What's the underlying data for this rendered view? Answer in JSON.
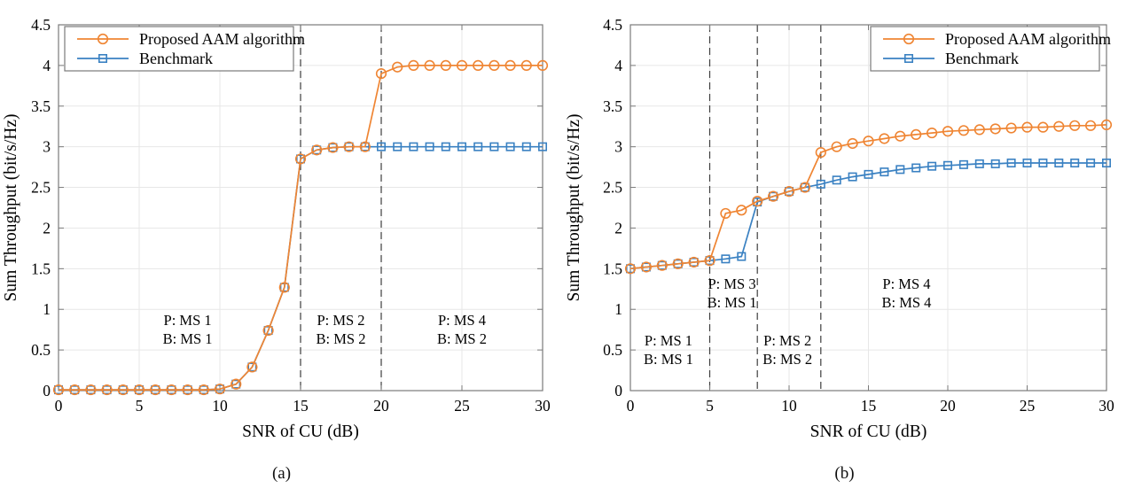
{
  "colors": {
    "proposed": "#EF8533",
    "benchmark": "#3A81C2",
    "dashed_line": "#3d3d3d",
    "grid": "#e7e7e7",
    "axis_box": "#7a7a7a",
    "text": "#000000",
    "background": "#ffffff"
  },
  "chart_data": [
    {
      "type": "line",
      "caption": "(a)",
      "xlabel": "SNR of CU (dB)",
      "ylabel": "Sum Throughput (bit/s/Hz)",
      "xlim": [
        0,
        30
      ],
      "ylim": [
        0,
        4.5
      ],
      "xticks": [
        0,
        5,
        10,
        15,
        20,
        25,
        30
      ],
      "yticks": [
        0,
        0.5,
        1,
        1.5,
        2,
        2.5,
        3,
        3.5,
        4,
        4.5
      ],
      "grid": true,
      "legend_position": "top-left",
      "dashed_vlines": [
        15,
        20
      ],
      "annotations": [
        {
          "x": 8,
          "y": 0.75,
          "lines": [
            "P: MS 1",
            "B: MS 1"
          ]
        },
        {
          "x": 17.5,
          "y": 0.75,
          "lines": [
            "P: MS 2",
            "B: MS 2"
          ]
        },
        {
          "x": 25,
          "y": 0.75,
          "lines": [
            "P: MS 4",
            "B: MS 2"
          ]
        }
      ],
      "x": [
        0,
        1,
        2,
        3,
        4,
        5,
        6,
        7,
        8,
        9,
        10,
        11,
        12,
        13,
        14,
        15,
        16,
        17,
        18,
        19,
        20,
        21,
        22,
        23,
        24,
        25,
        26,
        27,
        28,
        29,
        30
      ],
      "series": [
        {
          "name": "Proposed AAM algorithm",
          "marker": "circle",
          "color": "#EF8533",
          "values": [
            0.01,
            0.01,
            0.01,
            0.01,
            0.01,
            0.01,
            0.01,
            0.01,
            0.01,
            0.01,
            0.02,
            0.08,
            0.29,
            0.74,
            1.27,
            2.85,
            2.96,
            2.99,
            3.0,
            3.0,
            3.9,
            3.98,
            4.0,
            4.0,
            4.0,
            4.0,
            4.0,
            4.0,
            4.0,
            4.0,
            4.0
          ]
        },
        {
          "name": "Benchmark",
          "marker": "square",
          "color": "#3A81C2",
          "values": [
            0.01,
            0.01,
            0.01,
            0.01,
            0.01,
            0.01,
            0.01,
            0.01,
            0.01,
            0.01,
            0.02,
            0.08,
            0.29,
            0.74,
            1.27,
            2.85,
            2.96,
            2.99,
            3.0,
            3.0,
            3.0,
            3.0,
            3.0,
            3.0,
            3.0,
            3.0,
            3.0,
            3.0,
            3.0,
            3.0,
            3.0
          ]
        }
      ]
    },
    {
      "type": "line",
      "caption": "(b)",
      "xlabel": "SNR of CU (dB)",
      "ylabel": "Sum Throughput (bit/s/Hz)",
      "xlim": [
        0,
        30
      ],
      "ylim": [
        0,
        4.5
      ],
      "xticks": [
        0,
        5,
        10,
        15,
        20,
        25,
        30
      ],
      "yticks": [
        0,
        0.5,
        1,
        1.5,
        2,
        2.5,
        3,
        3.5,
        4,
        4.5
      ],
      "grid": true,
      "legend_position": "top-right",
      "dashed_vlines": [
        5,
        8,
        12
      ],
      "annotations": [
        {
          "x": 2.4,
          "y": 0.5,
          "lines": [
            "P: MS 1",
            "B: MS 1"
          ]
        },
        {
          "x": 6.4,
          "y": 1.2,
          "lines": [
            "P: MS 3",
            "B: MS 1"
          ]
        },
        {
          "x": 9.9,
          "y": 0.5,
          "lines": [
            "P: MS 2",
            "B: MS 2"
          ]
        },
        {
          "x": 17.4,
          "y": 1.2,
          "lines": [
            "P: MS 4",
            "B: MS 4"
          ]
        }
      ],
      "x": [
        0,
        1,
        2,
        3,
        4,
        5,
        6,
        7,
        8,
        9,
        10,
        11,
        12,
        13,
        14,
        15,
        16,
        17,
        18,
        19,
        20,
        21,
        22,
        23,
        24,
        25,
        26,
        27,
        28,
        29,
        30
      ],
      "series": [
        {
          "name": "Proposed AAM algorithm",
          "marker": "circle",
          "color": "#EF8533",
          "values": [
            1.5,
            1.52,
            1.54,
            1.56,
            1.58,
            1.6,
            2.18,
            2.22,
            2.33,
            2.39,
            2.45,
            2.5,
            2.93,
            3.0,
            3.04,
            3.07,
            3.1,
            3.13,
            3.15,
            3.17,
            3.19,
            3.2,
            3.21,
            3.22,
            3.23,
            3.24,
            3.24,
            3.25,
            3.26,
            3.26,
            3.27
          ]
        },
        {
          "name": "Benchmark",
          "marker": "square",
          "color": "#3A81C2",
          "values": [
            1.5,
            1.52,
            1.54,
            1.56,
            1.58,
            1.6,
            1.62,
            1.65,
            2.32,
            2.39,
            2.45,
            2.5,
            2.54,
            2.59,
            2.63,
            2.66,
            2.69,
            2.72,
            2.74,
            2.76,
            2.77,
            2.78,
            2.79,
            2.79,
            2.8,
            2.8,
            2.8,
            2.8,
            2.8,
            2.8,
            2.8
          ]
        }
      ]
    }
  ]
}
